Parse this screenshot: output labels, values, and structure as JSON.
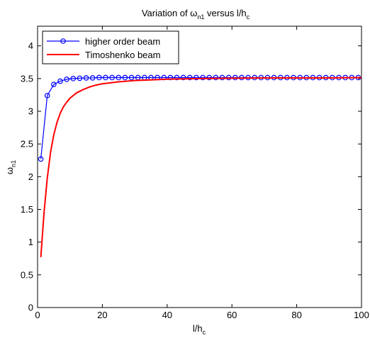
{
  "chart_data": {
    "type": "line",
    "title": {
      "prefix": "Variation of ",
      "symbol": "ω",
      "symbol_sub": "n1",
      "middle": " versus l/h",
      "end_sub": "c"
    },
    "xlabel": {
      "main": "l/h",
      "sub": "c"
    },
    "ylabel": {
      "main": "ω",
      "sub": "n1"
    },
    "xlim": [
      0,
      100
    ],
    "ylim": [
      0,
      4.3
    ],
    "xticks": [
      "0",
      "20",
      "40",
      "60",
      "80",
      "100"
    ],
    "yticks": [
      "0",
      "0.5",
      "1",
      "1.5",
      "2",
      "2.5",
      "3",
      "3.5",
      "4"
    ],
    "grid": false,
    "legend_position": "top-left",
    "series": [
      {
        "name": "higher order beam",
        "color": "#0000ff",
        "marker": "circle",
        "x": [
          1,
          3,
          5,
          7,
          9,
          11,
          13,
          15,
          17,
          19,
          21,
          23,
          25,
          27,
          29,
          31,
          33,
          35,
          37,
          39,
          41,
          43,
          45,
          47,
          49,
          51,
          53,
          55,
          57,
          59,
          61,
          63,
          65,
          67,
          69,
          71,
          73,
          75,
          77,
          79,
          81,
          83,
          85,
          87,
          89,
          91,
          93,
          95,
          97,
          99
        ],
        "y": [
          2.27,
          3.24,
          3.41,
          3.46,
          3.49,
          3.5,
          3.505,
          3.51,
          3.51,
          3.515,
          3.515,
          3.515,
          3.515,
          3.515,
          3.515,
          3.515,
          3.515,
          3.515,
          3.515,
          3.515,
          3.515,
          3.515,
          3.515,
          3.515,
          3.515,
          3.515,
          3.515,
          3.515,
          3.515,
          3.515,
          3.515,
          3.515,
          3.515,
          3.515,
          3.515,
          3.515,
          3.515,
          3.515,
          3.515,
          3.515,
          3.515,
          3.515,
          3.515,
          3.515,
          3.515,
          3.515,
          3.515,
          3.515,
          3.515,
          3.515
        ]
      },
      {
        "name": "Timoshenko beam",
        "color": "#ff0000",
        "marker": "none",
        "x": [
          1,
          2,
          3,
          4,
          5,
          6,
          7,
          8,
          9,
          10,
          12,
          14,
          16,
          18,
          20,
          25,
          30,
          35,
          40,
          50,
          60,
          70,
          80,
          90,
          100
        ],
        "y": [
          0.77,
          1.45,
          1.98,
          2.37,
          2.64,
          2.83,
          2.97,
          3.07,
          3.14,
          3.2,
          3.28,
          3.33,
          3.37,
          3.4,
          3.42,
          3.45,
          3.47,
          3.48,
          3.49,
          3.5,
          3.505,
          3.51,
          3.51,
          3.51,
          3.515
        ]
      }
    ]
  }
}
